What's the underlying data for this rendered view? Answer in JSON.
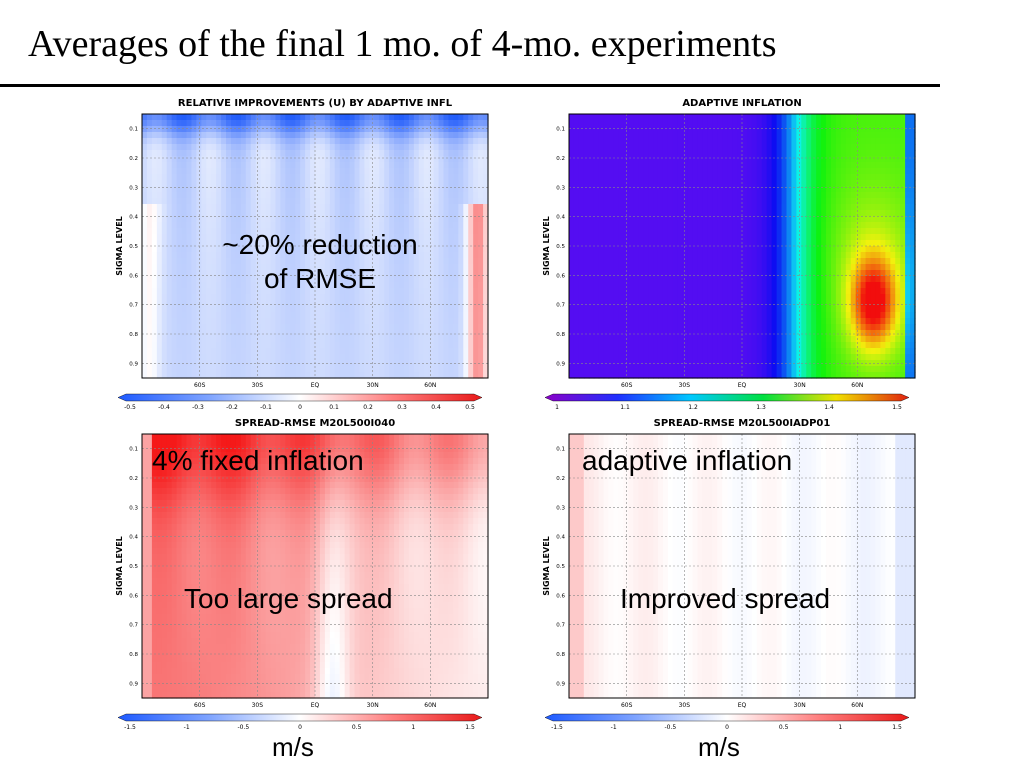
{
  "slide": {
    "title": "Averages of the final 1 mo. of 4-mo. experiments"
  },
  "annotations": {
    "p1_text_line1": "~20% reduction",
    "p1_text_line2": "of RMSE",
    "p3_label": "4% fixed inflation",
    "p3_text": "Too large spread",
    "p4_label": "adaptive inflation",
    "p4_text": "Improved spread",
    "unit_left": "m/s",
    "unit_right": "m/s"
  },
  "chart_data": [
    {
      "type": "heatmap",
      "title": "RELATIVE IMPROVEMENTS (U) BY ADAPTIVE INFL",
      "ylabel": "SIGMA LEVEL",
      "xlabel": "",
      "x_ticks": [
        "60S",
        "30S",
        "EQ",
        "30N",
        "60N"
      ],
      "y_ticks": [
        "0.1",
        "0.2",
        "0.3",
        "0.4",
        "0.5",
        "0.6",
        "0.7",
        "0.8",
        "0.9"
      ],
      "colorbar_ticks": [
        "-0.5",
        "-0.4",
        "-0.3",
        "-0.2",
        "-0.1",
        "0",
        "0.1",
        "0.2",
        "0.3",
        "0.4",
        "0.5"
      ],
      "colorbar_range": [
        -0.5,
        0.5
      ],
      "colormap": "blue-white-red",
      "grid": true,
      "summary": "Mostly negative (blue) values; strongest near sigma 0.1 (about -0.4); weak positive (red) near the southern and northern edges at lower levels."
    },
    {
      "type": "heatmap",
      "title": "ADAPTIVE INFLATION",
      "ylabel": "SIGMA LEVEL",
      "xlabel": "",
      "x_ticks": [
        "60S",
        "30S",
        "EQ",
        "30N",
        "60N"
      ],
      "y_ticks": [
        "0.1",
        "0.2",
        "0.3",
        "0.4",
        "0.5",
        "0.6",
        "0.7",
        "0.8",
        "0.9"
      ],
      "colorbar_ticks": [
        "1",
        "1.1",
        "1.2",
        "1.3",
        "1.4",
        "1.5"
      ],
      "colorbar_range": [
        1.0,
        1.5
      ],
      "colormap": "rainbow",
      "grid": true,
      "summary": "Values near 1.0 over the southern hemisphere; rising to about 1.3 north of 20N; maximum about 1.5 near 60N, sigma 0.7."
    },
    {
      "type": "heatmap",
      "title": "SPREAD-RMSE M20L500I040",
      "ylabel": "SIGMA LEVEL",
      "xlabel": "",
      "x_ticks": [
        "60S",
        "30S",
        "EQ",
        "30N",
        "60N"
      ],
      "y_ticks": [
        "0.1",
        "0.2",
        "0.3",
        "0.4",
        "0.5",
        "0.6",
        "0.7",
        "0.8",
        "0.9"
      ],
      "colorbar_ticks": [
        "-1.5",
        "-1",
        "-0.5",
        "0",
        "0.5",
        "1",
        "1.5"
      ],
      "colorbar_range": [
        -1.5,
        1.5
      ],
      "colormap": "blue-white-red",
      "grid": true,
      "summary": "Strongly positive (red) almost everywhere; largest (about 1.5) at upper levels sigma 0.1-0.3 and over the southern hemisphere; weaker toward the northern pole."
    },
    {
      "type": "heatmap",
      "title": "SPREAD-RMSE M20L500IADP01",
      "ylabel": "SIGMA LEVEL",
      "xlabel": "",
      "x_ticks": [
        "60S",
        "30S",
        "EQ",
        "30N",
        "60N"
      ],
      "y_ticks": [
        "0.1",
        "0.2",
        "0.3",
        "0.4",
        "0.5",
        "0.6",
        "0.7",
        "0.8",
        "0.9"
      ],
      "colorbar_ticks": [
        "-1.5",
        "-1",
        "-0.5",
        "0",
        "0.5",
        "1",
        "1.5"
      ],
      "colorbar_range": [
        -1.5,
        1.5
      ],
      "colormap": "blue-white-red",
      "grid": true,
      "summary": "Near zero everywhere; weak positive (light red) over the southern hemisphere and weak negative (light blue) toward the north."
    }
  ]
}
